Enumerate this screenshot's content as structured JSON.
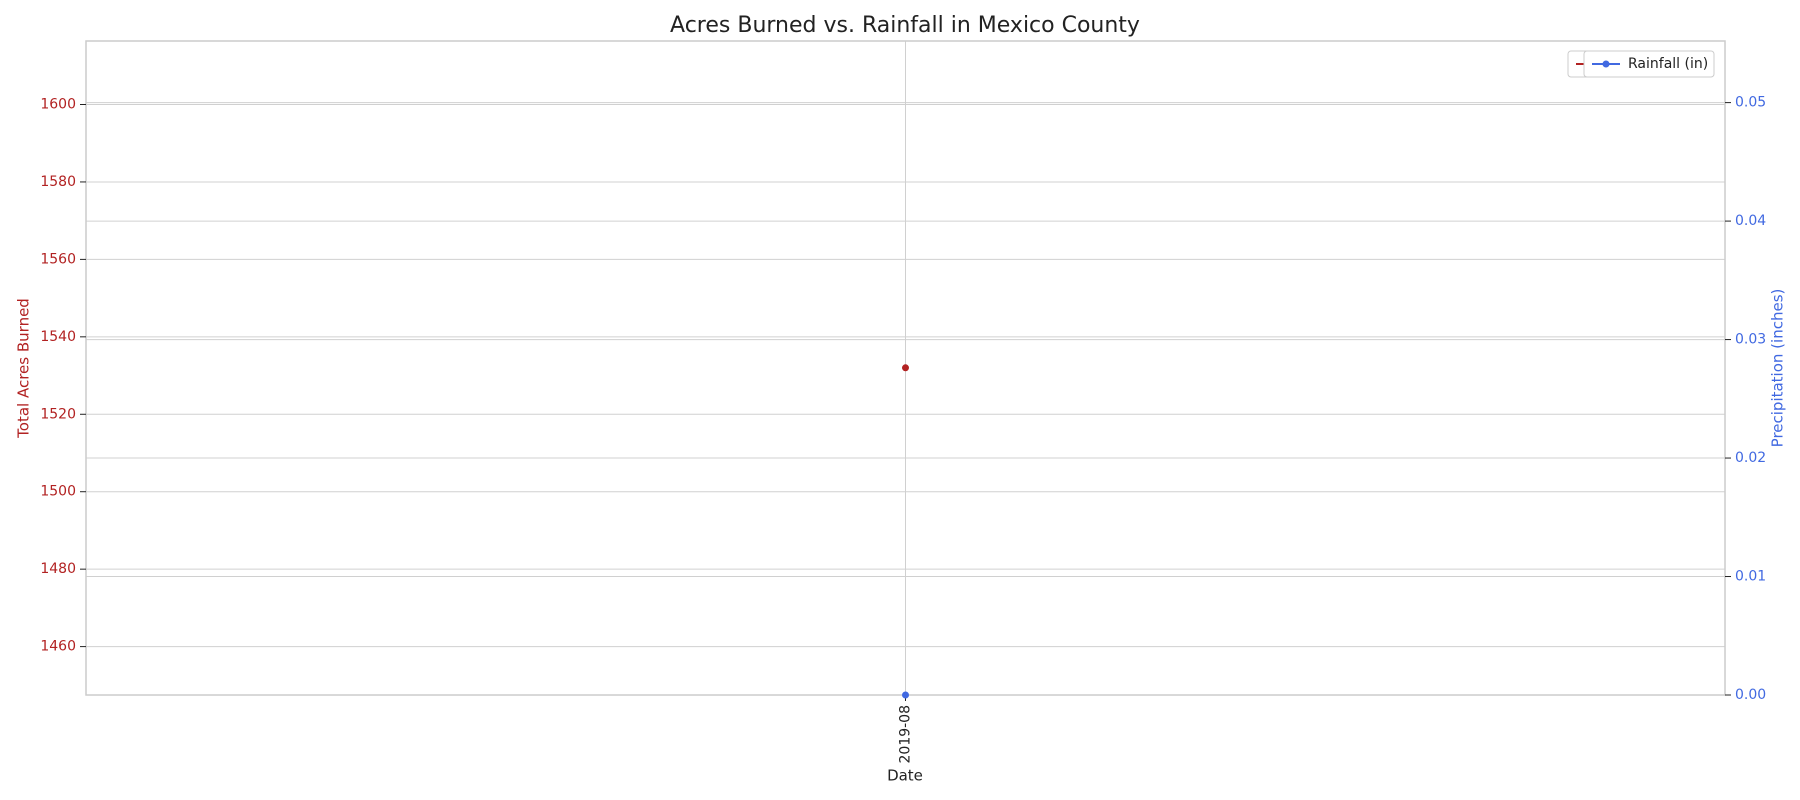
{
  "chart_data": {
    "type": "line",
    "title": "Acres Burned vs. Rainfall in Mexico County",
    "x_label": "Date",
    "y_label": "Total Acres Burned",
    "y2_label": "Precipitation (inches)",
    "x": [
      "2019-08"
    ],
    "series": [
      {
        "name": "Acres Burned",
        "color": "#b22222",
        "values": [
          1532
        ]
      },
      {
        "name": "Rainfall (in)",
        "color": "#4169e1",
        "values": [
          0
        ],
        "axis": "y2"
      }
    ],
    "ylim": [
      1447.5,
      1616.4
    ],
    "yticks": [
      1460,
      1480,
      1500,
      1520,
      1540,
      1560,
      1580,
      1600
    ],
    "y2lim": [
      0,
      0.0552
    ],
    "y2ticks": [
      {
        "value": 0,
        "label": "0.00"
      },
      {
        "value": 0.01,
        "label": "0.01"
      },
      {
        "value": 0.02,
        "label": "0.02"
      },
      {
        "value": 0.03,
        "label": "0.03"
      },
      {
        "value": 0.04,
        "label": "0.04"
      },
      {
        "value": 0.05,
        "label": "0.05"
      }
    ],
    "grid": true,
    "legend": "upper right"
  }
}
